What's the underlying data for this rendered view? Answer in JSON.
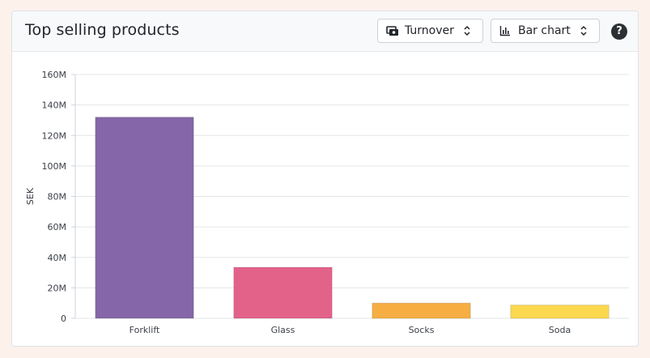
{
  "header": {
    "title": "Top selling products",
    "metric_select": {
      "label": "Turnover",
      "icon": "cash-icon"
    },
    "chart_type_select": {
      "label": "Bar chart",
      "icon": "bar-chart-icon"
    },
    "help_label": "?"
  },
  "chart_data": {
    "type": "bar",
    "categories": [
      "Forklift",
      "Glass",
      "Socks",
      "Soda"
    ],
    "values": [
      132000000,
      33500000,
      10000000,
      8700000
    ],
    "colors": [
      "#8566a8",
      "#e2628a",
      "#f6ae43",
      "#fbd84e"
    ],
    "ylabel": "SEK",
    "ylim": [
      0,
      160000000
    ],
    "yticks": [
      0,
      20000000,
      40000000,
      60000000,
      80000000,
      100000000,
      120000000,
      140000000,
      160000000
    ],
    "ytick_labels": [
      "0",
      "20M",
      "40M",
      "60M",
      "80M",
      "100M",
      "120M",
      "140M",
      "160M"
    ],
    "grid": true
  }
}
